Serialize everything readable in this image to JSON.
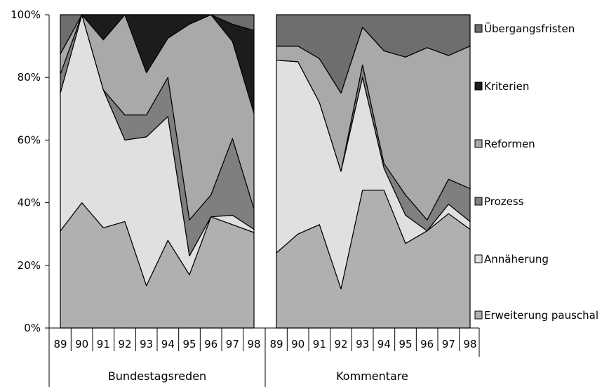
{
  "chart_data": {
    "type": "area",
    "stacked_percent": true,
    "ylim": [
      0,
      100
    ],
    "y_ticks": [
      "0%",
      "20%",
      "40%",
      "60%",
      "80%",
      "100%"
    ],
    "legend_position": "right",
    "categories": [
      "89",
      "90",
      "91",
      "92",
      "93",
      "94",
      "95",
      "96",
      "97",
      "98"
    ],
    "series": [
      {
        "name": "Erweiterung pauschal",
        "color": "#b0b0b0"
      },
      {
        "name": "Annäherung",
        "color": "#e0e0e0"
      },
      {
        "name": "Prozess",
        "color": "#7f7f7f"
      },
      {
        "name": "Reformen",
        "color": "#a9a9a9"
      },
      {
        "name": "Kriterien",
        "color": "#1c1c1c"
      },
      {
        "name": "Übergangsfristen",
        "color": "#6e6e6e"
      }
    ],
    "panels": [
      {
        "group_label": "Bundestagsreden",
        "cumulative_upper": [
          [
            31,
            40,
            32,
            34,
            13.5,
            28,
            17,
            35.5,
            33,
            30.5
          ],
          [
            75,
            100,
            76,
            60,
            61,
            67.5,
            23,
            35.5,
            36,
            31.5
          ],
          [
            81,
            100,
            76,
            68,
            68,
            80,
            34.5,
            42.5,
            60.5,
            38
          ],
          [
            87.5,
            100,
            92,
            100,
            81.5,
            92.5,
            97,
            100,
            91.5,
            68.5
          ],
          [
            87.5,
            100,
            100,
            100,
            100,
            100,
            100,
            100,
            97,
            95
          ],
          [
            100,
            100,
            100,
            100,
            100,
            100,
            100,
            100,
            100,
            100
          ]
        ]
      },
      {
        "group_label": "Kommentare",
        "cumulative_upper": [
          [
            24,
            30,
            33,
            12.5,
            44,
            44,
            27,
            31,
            36.5,
            31.5
          ],
          [
            85.5,
            85,
            72,
            50,
            80,
            51,
            36,
            31,
            39.5,
            34
          ],
          [
            85.5,
            85,
            72,
            50,
            84,
            52.5,
            42.5,
            34.5,
            47.5,
            44.5
          ],
          [
            90,
            90,
            86,
            75,
            96,
            88.5,
            86.5,
            89.5,
            87,
            90
          ],
          [
            90,
            90,
            86,
            75,
            96,
            88.5,
            86.5,
            89.5,
            87,
            90
          ],
          [
            100,
            100,
            100,
            100,
            100,
            100,
            100,
            100,
            100,
            100
          ]
        ]
      }
    ]
  }
}
